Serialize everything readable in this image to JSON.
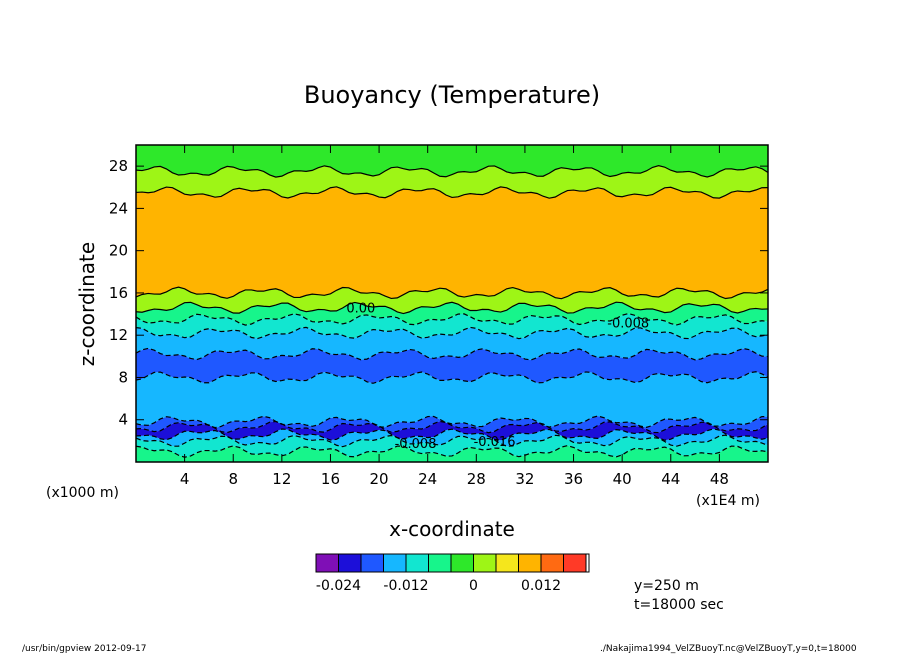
{
  "chart_data": {
    "type": "heatmap",
    "title": "Buoyancy (Temperature)",
    "xlabel": "x-coordinate",
    "ylabel": "z-coordinate",
    "x_unit_left": "(x1000 m)",
    "x_unit_right": "(x1E4 m)",
    "xlim": [
      0,
      52
    ],
    "ylim": [
      0,
      30
    ],
    "x_ticks": [
      "4",
      "8",
      "12",
      "16",
      "20",
      "24",
      "28",
      "32",
      "36",
      "40",
      "44",
      "48"
    ],
    "y_ticks": [
      "4",
      "8",
      "12",
      "16",
      "20",
      "24",
      "28"
    ],
    "layers": [
      {
        "z": [
          0.0,
          1.0
        ],
        "level": -0.008
      },
      {
        "z": [
          1.0,
          2.0
        ],
        "level": -0.012
      },
      {
        "z": [
          2.0,
          2.6
        ],
        "level": -0.016
      },
      {
        "z": [
          2.6,
          3.3
        ],
        "level": -0.024
      },
      {
        "z": [
          3.3,
          3.8
        ],
        "level": -0.02
      },
      {
        "z": [
          3.8,
          8.0
        ],
        "level": -0.016
      },
      {
        "z": [
          8.0,
          10.2
        ],
        "level": -0.02
      },
      {
        "z": [
          10.2,
          12.2
        ],
        "level": -0.016
      },
      {
        "z": [
          12.2,
          13.5
        ],
        "level": -0.012
      },
      {
        "z": [
          13.5,
          14.6
        ],
        "level": -0.008
      },
      {
        "z": [
          14.6,
          16.0
        ],
        "level": 0.0
      },
      {
        "z": [
          16.0,
          25.5
        ],
        "level": 0.008
      },
      {
        "z": [
          25.5,
          27.5
        ],
        "level": 0.0
      },
      {
        "z": [
          27.5,
          30.0
        ],
        "level": -0.004
      }
    ],
    "contour_labels": [
      "0.00",
      "-0.008",
      "-0.008",
      "-0.016"
    ],
    "colorbar": {
      "colors": [
        "#7f0fb6",
        "#1c0fd9",
        "#1f58ff",
        "#16b7ff",
        "#12e6d0",
        "#17f58b",
        "#2ee82a",
        "#9ef516",
        "#f5e61c",
        "#ffb400",
        "#ff6a12",
        "#ff3a27"
      ],
      "tick_labels": [
        "-0.024",
        "-0.012",
        "0",
        "0.012"
      ]
    },
    "info": [
      "y=250 m",
      "t=18000 sec"
    ]
  },
  "footer": {
    "left": "/usr/bin/gpview   2012-09-17",
    "right": "./Nakajima1994_VelZBuoyT.nc@VelZBuoyT,y=0,t=18000"
  }
}
